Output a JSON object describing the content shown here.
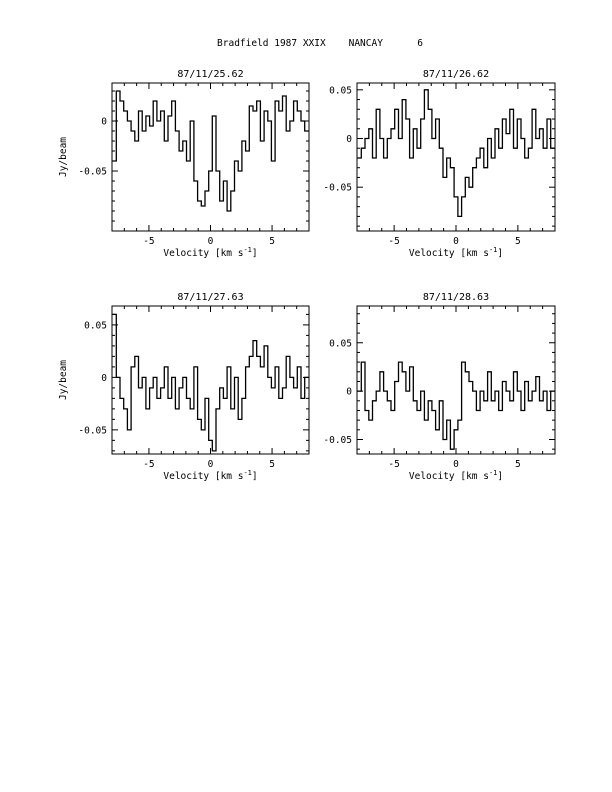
{
  "page": {
    "title": "Bradfield 1987 XXIX    NANCAY      6"
  },
  "chart_data": [
    {
      "type": "line",
      "title": "87/11/25.62",
      "xlabel": "Velocity [km s",
      "xlabel_sup": "-1",
      "xlabel_end": "]",
      "ylabel": "Jy/beam",
      "xlim": [
        -8,
        8
      ],
      "ylim": [
        -0.11,
        0.038
      ],
      "xticks": [
        -5,
        0,
        5
      ],
      "yticks": [
        0,
        -0.05
      ],
      "ytick_labels": [
        "0",
        "-0.05"
      ],
      "x": [
        -7.8,
        -7.5,
        -7.2,
        -6.9,
        -6.6,
        -6.3,
        -6.0,
        -5.7,
        -5.4,
        -5.1,
        -4.8,
        -4.5,
        -4.2,
        -3.9,
        -3.6,
        -3.3,
        -3.0,
        -2.7,
        -2.4,
        -2.1,
        -1.8,
        -1.5,
        -1.2,
        -0.9,
        -0.6,
        -0.3,
        0.0,
        0.3,
        0.6,
        0.9,
        1.2,
        1.5,
        1.8,
        2.1,
        2.4,
        2.7,
        3.0,
        3.3,
        3.6,
        3.9,
        4.2,
        4.5,
        4.8,
        5.1,
        5.4,
        5.7,
        6.0,
        6.3,
        6.6,
        6.9,
        7.2,
        7.5,
        7.8
      ],
      "y": [
        -0.04,
        0.03,
        0.02,
        0.01,
        0.0,
        -0.01,
        -0.02,
        0.01,
        -0.01,
        0.005,
        -0.005,
        0.02,
        0.0,
        0.01,
        -0.02,
        0.005,
        0.02,
        -0.01,
        -0.03,
        -0.02,
        -0.04,
        0.0,
        -0.06,
        -0.08,
        -0.085,
        -0.07,
        -0.05,
        0.005,
        -0.05,
        -0.08,
        -0.06,
        -0.09,
        -0.07,
        -0.04,
        -0.05,
        -0.02,
        -0.03,
        0.015,
        0.01,
        0.02,
        -0.02,
        0.01,
        0.0,
        -0.04,
        0.02,
        0.01,
        0.025,
        -0.01,
        0.0,
        0.02,
        0.01,
        0.0,
        -0.01
      ]
    },
    {
      "type": "line",
      "title": "87/11/26.62",
      "xlabel": "Velocity [km s",
      "xlabel_sup": "-1",
      "xlabel_end": "]",
      "ylabel": "",
      "xlim": [
        -8,
        8
      ],
      "ylim": [
        -0.095,
        0.057
      ],
      "xticks": [
        -5,
        0,
        5
      ],
      "yticks": [
        0.05,
        0,
        -0.05
      ],
      "ytick_labels": [
        "0.05",
        "0",
        "-0.05"
      ],
      "x": [
        -7.8,
        -7.5,
        -7.2,
        -6.9,
        -6.6,
        -6.3,
        -6.0,
        -5.7,
        -5.4,
        -5.1,
        -4.8,
        -4.5,
        -4.2,
        -3.9,
        -3.6,
        -3.3,
        -3.0,
        -2.7,
        -2.4,
        -2.1,
        -1.8,
        -1.5,
        -1.2,
        -0.9,
        -0.6,
        -0.3,
        0.0,
        0.3,
        0.6,
        0.9,
        1.2,
        1.5,
        1.8,
        2.1,
        2.4,
        2.7,
        3.0,
        3.3,
        3.6,
        3.9,
        4.2,
        4.5,
        4.8,
        5.1,
        5.4,
        5.7,
        6.0,
        6.3,
        6.6,
        6.9,
        7.2,
        7.5,
        7.8
      ],
      "y": [
        -0.02,
        -0.01,
        0.0,
        0.01,
        -0.02,
        0.03,
        0.0,
        -0.02,
        0.0,
        0.01,
        0.03,
        0.0,
        0.04,
        0.02,
        -0.02,
        0.01,
        -0.01,
        0.02,
        0.05,
        0.03,
        0.0,
        0.02,
        -0.01,
        -0.04,
        -0.02,
        -0.03,
        -0.06,
        -0.08,
        -0.06,
        -0.04,
        -0.05,
        -0.03,
        -0.02,
        -0.01,
        -0.03,
        0.0,
        -0.02,
        0.01,
        -0.01,
        0.02,
        0.005,
        0.03,
        -0.01,
        0.02,
        0.0,
        -0.02,
        -0.01,
        0.03,
        0.0,
        0.01,
        -0.01,
        0.02,
        -0.01
      ]
    },
    {
      "type": "line",
      "title": "87/11/27.63",
      "xlabel": "Velocity [km s",
      "xlabel_sup": "-1",
      "xlabel_end": "]",
      "ylabel": "Jy/beam",
      "xlim": [
        -8,
        8
      ],
      "ylim": [
        -0.073,
        0.068
      ],
      "xticks": [
        -5,
        0,
        5
      ],
      "yticks": [
        0.05,
        0,
        -0.05
      ],
      "ytick_labels": [
        "0.05",
        "0",
        "-0.05"
      ],
      "x": [
        -7.8,
        -7.5,
        -7.2,
        -6.9,
        -6.6,
        -6.3,
        -6.0,
        -5.7,
        -5.4,
        -5.1,
        -4.8,
        -4.5,
        -4.2,
        -3.9,
        -3.6,
        -3.3,
        -3.0,
        -2.7,
        -2.4,
        -2.1,
        -1.8,
        -1.5,
        -1.2,
        -0.9,
        -0.6,
        -0.3,
        0.0,
        0.3,
        0.6,
        0.9,
        1.2,
        1.5,
        1.8,
        2.1,
        2.4,
        2.7,
        3.0,
        3.3,
        3.6,
        3.9,
        4.2,
        4.5,
        4.8,
        5.1,
        5.4,
        5.7,
        6.0,
        6.3,
        6.6,
        6.9,
        7.2,
        7.5,
        7.8
      ],
      "y": [
        0.06,
        0.0,
        -0.02,
        -0.03,
        -0.05,
        0.01,
        0.02,
        -0.01,
        0.0,
        -0.03,
        -0.01,
        0.0,
        -0.02,
        -0.01,
        0.01,
        -0.02,
        0.0,
        -0.03,
        -0.01,
        0.0,
        -0.02,
        -0.03,
        0.01,
        -0.04,
        -0.05,
        -0.02,
        -0.06,
        -0.07,
        -0.03,
        -0.01,
        -0.02,
        0.01,
        -0.03,
        0.0,
        -0.04,
        -0.02,
        0.01,
        0.02,
        0.035,
        0.02,
        0.01,
        0.03,
        0.0,
        -0.01,
        0.01,
        -0.02,
        -0.01,
        0.02,
        0.0,
        -0.01,
        0.01,
        -0.02,
        0.0
      ]
    },
    {
      "type": "line",
      "title": "87/11/28.63",
      "xlabel": "Velocity [km s",
      "xlabel_sup": "-1",
      "xlabel_end": "]",
      "ylabel": "",
      "xlim": [
        -8,
        8
      ],
      "ylim": [
        -0.065,
        0.088
      ],
      "xticks": [
        -5,
        0,
        5
      ],
      "yticks": [
        0.05,
        0,
        -0.05
      ],
      "ytick_labels": [
        "0.05",
        "0",
        "-0.05"
      ],
      "x": [
        -7.8,
        -7.5,
        -7.2,
        -6.9,
        -6.6,
        -6.3,
        -6.0,
        -5.7,
        -5.4,
        -5.1,
        -4.8,
        -4.5,
        -4.2,
        -3.9,
        -3.6,
        -3.3,
        -3.0,
        -2.7,
        -2.4,
        -2.1,
        -1.8,
        -1.5,
        -1.2,
        -0.9,
        -0.6,
        -0.3,
        0.0,
        0.3,
        0.6,
        0.9,
        1.2,
        1.5,
        1.8,
        2.1,
        2.4,
        2.7,
        3.0,
        3.3,
        3.6,
        3.9,
        4.2,
        4.5,
        4.8,
        5.1,
        5.4,
        5.7,
        6.0,
        6.3,
        6.6,
        6.9,
        7.2,
        7.5,
        7.8
      ],
      "y": [
        0.0,
        0.03,
        -0.02,
        -0.03,
        -0.01,
        0.0,
        0.02,
        0.0,
        -0.01,
        -0.02,
        0.01,
        0.03,
        0.02,
        0.0,
        0.025,
        -0.01,
        -0.02,
        0.0,
        -0.03,
        -0.01,
        -0.02,
        -0.04,
        -0.01,
        -0.05,
        -0.03,
        -0.06,
        -0.04,
        -0.03,
        0.03,
        0.02,
        0.01,
        0.0,
        -0.02,
        0.0,
        -0.01,
        0.02,
        -0.01,
        0.0,
        -0.02,
        0.01,
        0.0,
        -0.01,
        0.02,
        0.0,
        -0.02,
        0.01,
        -0.01,
        0.0,
        0.015,
        -0.01,
        0.0,
        -0.02,
        0.0
      ]
    }
  ]
}
